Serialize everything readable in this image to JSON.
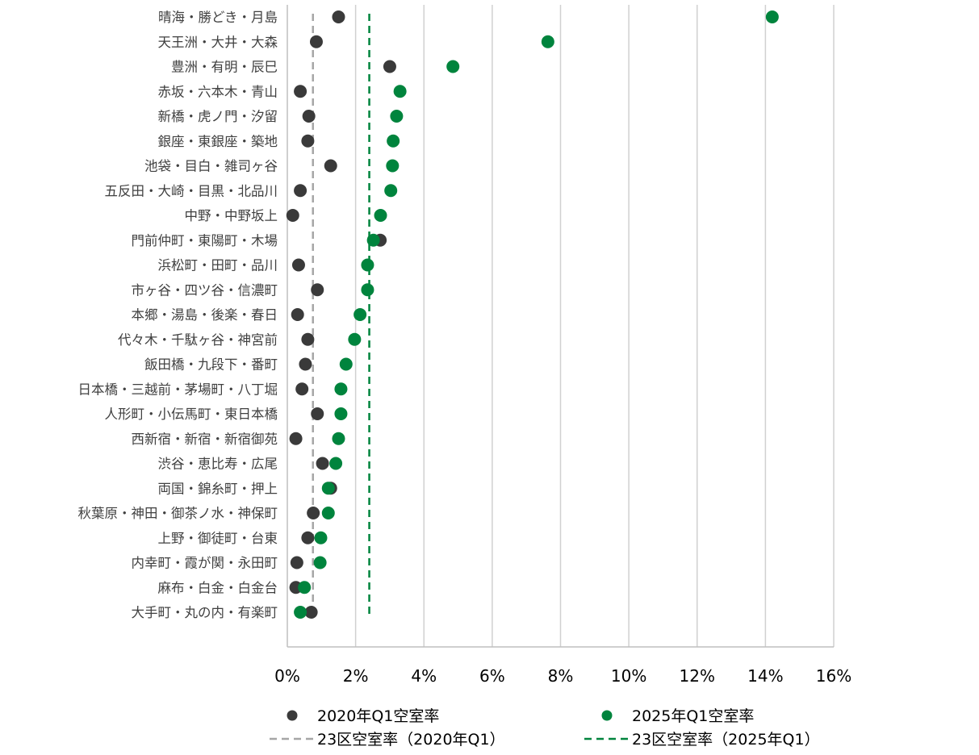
{
  "chart_data": {
    "type": "scatter",
    "orientation": "horizontal",
    "categories": [
      "晴海・勝どき・月島",
      "天王洲・大井・大森",
      "豊洲・有明・辰巳",
      "赤坂・六本木・青山",
      "新橋・虎ノ門・汐留",
      "銀座・東銀座・築地",
      "池袋・目白・雑司ヶ谷",
      "五反田・大崎・目黒・北品川",
      "中野・中野坂上",
      "門前仲町・東陽町・木場",
      "浜松町・田町・品川",
      "市ヶ谷・四ツ谷・信濃町",
      "本郷・湯島・後楽・春日",
      "代々木・千駄ヶ谷・神宮前",
      "飯田橋・九段下・番町",
      "日本橋・三越前・茅場町・八丁堀",
      "人形町・小伝馬町・東日本橋",
      "西新宿・新宿・新宿御苑",
      "渋谷・恵比寿・広尾",
      "両国・錦糸町・押上",
      "秋葉原・神田・御茶ノ水・神保町",
      "上野・御徒町・台東",
      "内幸町・霞が関・永田町",
      "麻布・白金・白金台",
      "大手町・丸の内・有楽町"
    ],
    "series": [
      {
        "name": "2020年Q1空室率",
        "color": "#3a3a3a",
        "values": [
          1.5,
          0.85,
          3.0,
          0.38,
          0.63,
          0.6,
          1.27,
          0.38,
          0.16,
          2.72,
          0.33,
          0.88,
          0.3,
          0.6,
          0.53,
          0.43,
          0.88,
          0.25,
          1.03,
          1.27,
          0.76,
          0.6,
          0.28,
          0.25,
          0.7
        ]
      },
      {
        "name": "2025年Q1空室率",
        "color": "#00843d",
        "values": [
          14.2,
          7.63,
          4.85,
          3.3,
          3.2,
          3.1,
          3.08,
          3.03,
          2.73,
          2.52,
          2.35,
          2.35,
          2.13,
          1.97,
          1.72,
          1.57,
          1.57,
          1.5,
          1.42,
          1.2,
          1.2,
          0.98,
          0.96,
          0.5,
          0.38
        ]
      }
    ],
    "reference_lines": [
      {
        "name": "23区空室率（2020年Q1）",
        "value": 0.75,
        "color": "#a6a6a6"
      },
      {
        "name": "23区空室率（2025年Q1）",
        "value": 2.4,
        "color": "#00843d"
      }
    ],
    "xlim": [
      0,
      16
    ],
    "xticks": [
      "0%",
      "2%",
      "4%",
      "6%",
      "8%",
      "10%",
      "12%",
      "14%",
      "16%"
    ],
    "grid": "vertical",
    "legend_position": "bottom"
  }
}
